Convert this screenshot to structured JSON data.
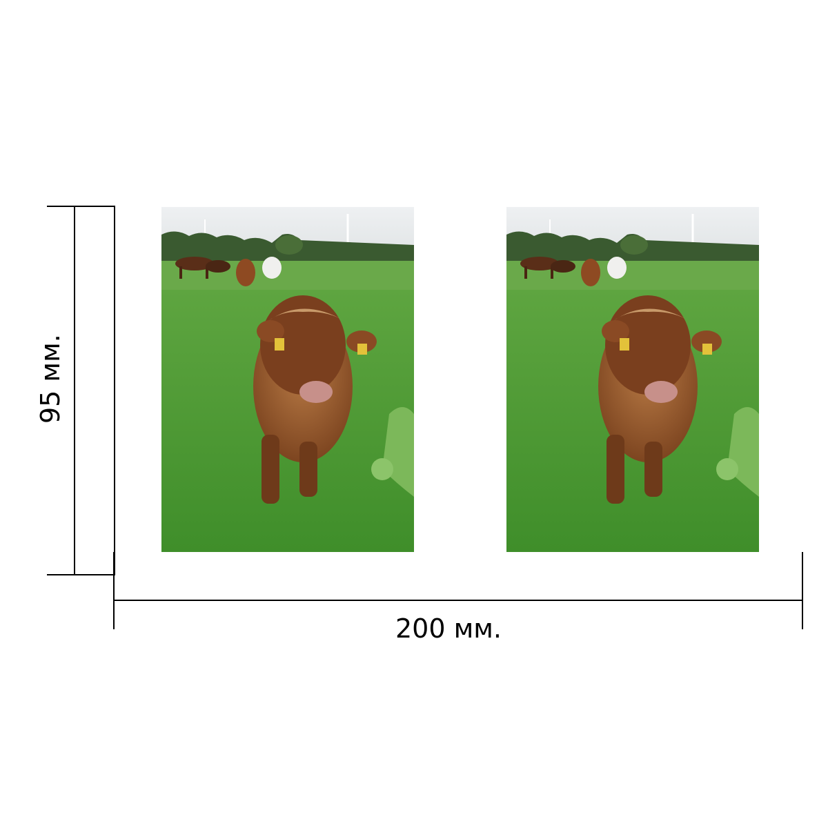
{
  "dimensions": {
    "height_label": "95 мм.",
    "width_label": "200 мм."
  },
  "photos": [
    {
      "subject": "highland-calf-in-pasture"
    },
    {
      "subject": "highland-calf-in-pasture"
    }
  ],
  "colors": {
    "sky": "#e8eaec",
    "grass": "#4f9a35",
    "calf": "#9a5a2b",
    "trees": "#3a5a30"
  }
}
